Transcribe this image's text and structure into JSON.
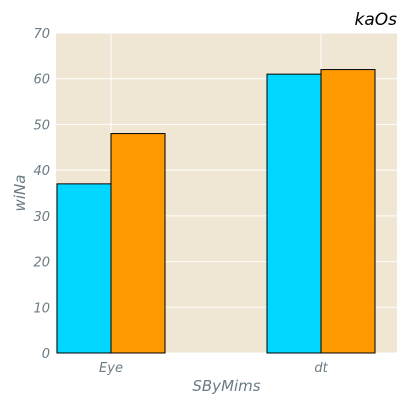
{
  "chart_data": {
    "type": "bar",
    "title": "kaOs",
    "xlabel": "SByMims",
    "ylabel": "wiNa",
    "categories": [
      "Eye",
      "dt"
    ],
    "series": [
      {
        "color": "#00d6ff",
        "values": [
          37,
          61
        ]
      },
      {
        "color": "#ff9900",
        "values": [
          48,
          62
        ]
      }
    ],
    "ylim": [
      0,
      70
    ],
    "yticks": [
      0,
      10,
      20,
      30,
      40,
      50,
      60,
      70
    ],
    "grid": true,
    "plot_background": "#efe6d3",
    "grid_color": "#ffffff"
  }
}
